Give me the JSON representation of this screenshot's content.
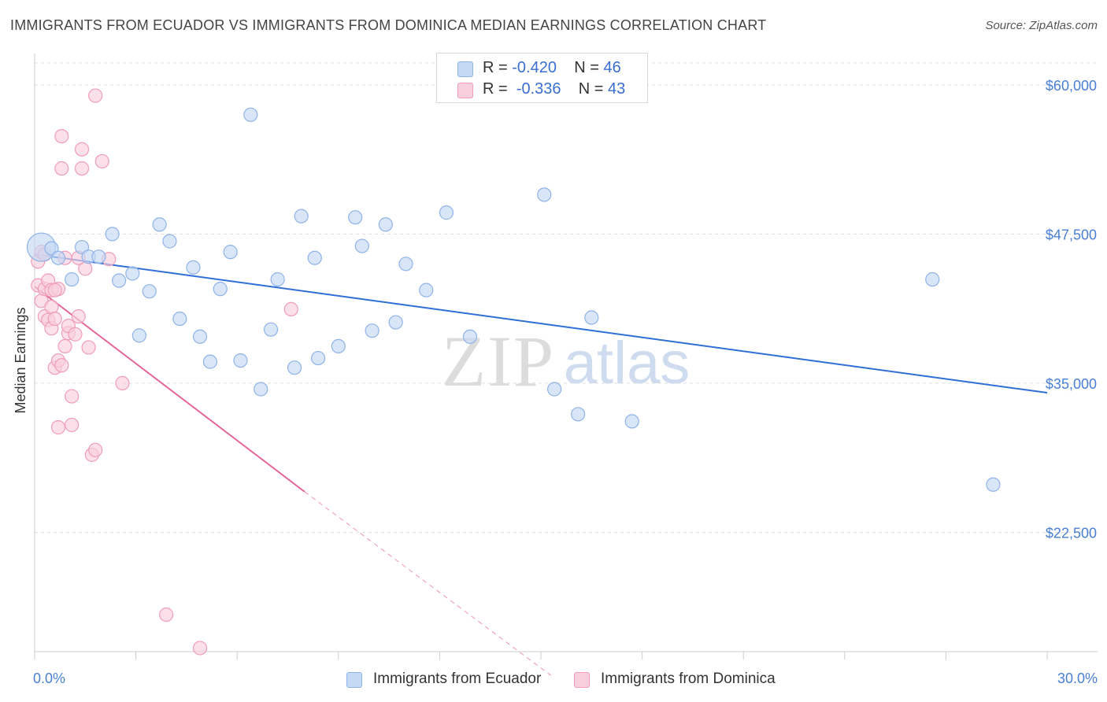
{
  "title": "IMMIGRANTS FROM ECUADOR VS IMMIGRANTS FROM DOMINICA MEDIAN EARNINGS CORRELATION CHART",
  "source": "Source: ZipAtlas.com",
  "watermark": {
    "zip": "ZIP",
    "atlas": "atlas"
  },
  "legend": {
    "ecuador": {
      "r_label": "R = ",
      "r_value": "-0.420",
      "n_label": "N = ",
      "n_value": "46"
    },
    "dominica": {
      "r_label": "R = ",
      "r_value": "-0.336",
      "n_label": "N = ",
      "n_value": "43"
    }
  },
  "bottom_legend": {
    "ecuador": "Immigrants from Ecuador",
    "dominica": "Immigrants from Dominica"
  },
  "x_min_label": "0.0%",
  "x_max_label": "30.0%",
  "colors": {
    "ecuador_fill": "#c5d9f5",
    "ecuador_stroke": "#8fb3e8",
    "ecuador_line": "#2f6fd6",
    "dominica_fill": "#f9cfdd",
    "dominica_stroke": "#ef9db8",
    "dominica_line": "#e5679a",
    "tick_text": "#4a7fd4"
  },
  "chart_data": {
    "type": "scatter",
    "title": "IMMIGRANTS FROM ECUADOR VS IMMIGRANTS FROM DOMINICA MEDIAN EARNINGS CORRELATION CHART",
    "xlabel": "",
    "ylabel": "Median Earnings",
    "xlim": [
      0,
      30
    ],
    "ylim": [
      12500,
      62500
    ],
    "y_ticks": [
      22500,
      35000,
      47500,
      60000
    ],
    "y_tick_labels": [
      "$22,500",
      "$35,000",
      "$47,500",
      "$60,000"
    ],
    "grid": true,
    "legend_position": "top-center",
    "series": [
      {
        "name": "Immigrants from Ecuador",
        "color": "#8fb3e8",
        "trend": {
          "x": [
            0,
            30
          ],
          "y": [
            45800,
            34200
          ],
          "style": "solid"
        },
        "points": [
          {
            "x": 0.2,
            "y": 46400,
            "big": true
          },
          {
            "x": 0.5,
            "y": 46300
          },
          {
            "x": 0.7,
            "y": 45500
          },
          {
            "x": 1.1,
            "y": 43700
          },
          {
            "x": 1.4,
            "y": 46400
          },
          {
            "x": 1.6,
            "y": 45600
          },
          {
            "x": 1.9,
            "y": 45600
          },
          {
            "x": 2.3,
            "y": 47500
          },
          {
            "x": 2.5,
            "y": 43600
          },
          {
            "x": 2.9,
            "y": 44200
          },
          {
            "x": 3.1,
            "y": 39000
          },
          {
            "x": 3.4,
            "y": 42700
          },
          {
            "x": 3.7,
            "y": 48300
          },
          {
            "x": 4.0,
            "y": 46900
          },
          {
            "x": 4.3,
            "y": 40400
          },
          {
            "x": 4.7,
            "y": 44700
          },
          {
            "x": 4.9,
            "y": 38900
          },
          {
            "x": 5.2,
            "y": 36800
          },
          {
            "x": 5.5,
            "y": 42900
          },
          {
            "x": 5.8,
            "y": 46000
          },
          {
            "x": 6.1,
            "y": 36900
          },
          {
            "x": 6.4,
            "y": 57500
          },
          {
            "x": 6.7,
            "y": 34500
          },
          {
            "x": 7.0,
            "y": 39500
          },
          {
            "x": 7.2,
            "y": 43700
          },
          {
            "x": 7.7,
            "y": 36300
          },
          {
            "x": 7.9,
            "y": 49000
          },
          {
            "x": 8.3,
            "y": 45500
          },
          {
            "x": 8.4,
            "y": 37100
          },
          {
            "x": 9.0,
            "y": 38100
          },
          {
            "x": 9.5,
            "y": 48900
          },
          {
            "x": 9.7,
            "y": 46500
          },
          {
            "x": 10.0,
            "y": 39400
          },
          {
            "x": 10.4,
            "y": 48300
          },
          {
            "x": 10.7,
            "y": 40100
          },
          {
            "x": 11.0,
            "y": 45000
          },
          {
            "x": 11.6,
            "y": 42800
          },
          {
            "x": 12.2,
            "y": 49300
          },
          {
            "x": 12.9,
            "y": 38900
          },
          {
            "x": 15.1,
            "y": 50800
          },
          {
            "x": 15.4,
            "y": 34500
          },
          {
            "x": 16.1,
            "y": 32400
          },
          {
            "x": 16.5,
            "y": 40500
          },
          {
            "x": 17.7,
            "y": 31800
          },
          {
            "x": 26.6,
            "y": 43700
          },
          {
            "x": 28.4,
            "y": 26500
          }
        ]
      },
      {
        "name": "Immigrants from Dominica",
        "color": "#ef9db8",
        "trend": {
          "x": [
            0,
            8.0
          ],
          "y": [
            43100,
            25900
          ],
          "style": "solid",
          "extension_x": [
            8.0,
            15.3
          ],
          "extension_y": [
            25900,
            10500
          ]
        },
        "points": [
          {
            "x": 0.1,
            "y": 45200
          },
          {
            "x": 0.1,
            "y": 43200
          },
          {
            "x": 0.2,
            "y": 41900
          },
          {
            "x": 0.2,
            "y": 46000
          },
          {
            "x": 0.3,
            "y": 42900
          },
          {
            "x": 0.3,
            "y": 40600
          },
          {
            "x": 0.4,
            "y": 40300
          },
          {
            "x": 0.4,
            "y": 43600
          },
          {
            "x": 0.5,
            "y": 42800
          },
          {
            "x": 0.5,
            "y": 41400
          },
          {
            "x": 0.5,
            "y": 39600
          },
          {
            "x": 0.6,
            "y": 40400
          },
          {
            "x": 0.6,
            "y": 36300
          },
          {
            "x": 0.7,
            "y": 36900
          },
          {
            "x": 0.7,
            "y": 31300
          },
          {
            "x": 0.7,
            "y": 42900
          },
          {
            "x": 0.8,
            "y": 53000
          },
          {
            "x": 0.8,
            "y": 55700
          },
          {
            "x": 0.8,
            "y": 36500
          },
          {
            "x": 0.9,
            "y": 38100
          },
          {
            "x": 0.9,
            "y": 45500
          },
          {
            "x": 1.0,
            "y": 39200
          },
          {
            "x": 1.0,
            "y": 39800
          },
          {
            "x": 1.1,
            "y": 31500
          },
          {
            "x": 1.1,
            "y": 33900
          },
          {
            "x": 1.2,
            "y": 39100
          },
          {
            "x": 1.3,
            "y": 40600
          },
          {
            "x": 1.4,
            "y": 53000
          },
          {
            "x": 1.4,
            "y": 54600
          },
          {
            "x": 1.5,
            "y": 44600
          },
          {
            "x": 1.6,
            "y": 38000
          },
          {
            "x": 1.7,
            "y": 29000
          },
          {
            "x": 1.8,
            "y": 29400
          },
          {
            "x": 1.8,
            "y": 59100
          },
          {
            "x": 2.0,
            "y": 53600
          },
          {
            "x": 2.2,
            "y": 45400
          },
          {
            "x": 2.6,
            "y": 35000
          },
          {
            "x": 3.9,
            "y": 15600
          },
          {
            "x": 4.9,
            "y": 12800
          },
          {
            "x": 7.6,
            "y": 41200
          },
          {
            "x": 0.3,
            "y": 45800
          },
          {
            "x": 0.6,
            "y": 42800
          },
          {
            "x": 1.3,
            "y": 45500
          }
        ]
      }
    ]
  }
}
